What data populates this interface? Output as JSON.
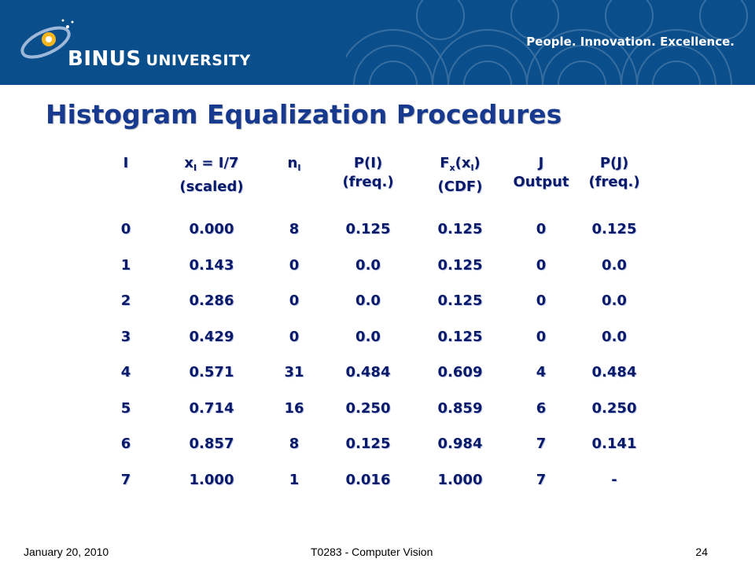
{
  "header": {
    "brand_main": "BINUS",
    "brand_sub": "UNIVERSITY",
    "tagline": "People. Innovation. Excellence."
  },
  "title": "Histogram Equalization Procedures",
  "table": {
    "headers": [
      [
        "I",
        ""
      ],
      [
        "x = I/7",
        "(scaled)"
      ],
      [
        "n",
        ""
      ],
      [
        "P(I)",
        "(freq.)"
      ],
      [
        "F(x)",
        "(CDF)"
      ],
      [
        "J",
        "Output"
      ],
      [
        "P(J)",
        "(freq.)"
      ]
    ],
    "header_subscripts": {
      "x": "I",
      "n": "I",
      "F": "x",
      "x_in_F": "I"
    },
    "rows": [
      [
        "0",
        "0.000",
        "8",
        "0.125",
        "0.125",
        "0",
        "0.125"
      ],
      [
        "1",
        "0.143",
        "0",
        "0.0",
        "0.125",
        "0",
        "0.0"
      ],
      [
        "2",
        "0.286",
        "0",
        "0.0",
        "0.125",
        "0",
        "0.0"
      ],
      [
        "3",
        "0.429",
        "0",
        "0.0",
        "0.125",
        "0",
        "0.0"
      ],
      [
        "4",
        "0.571",
        "31",
        "0.484",
        "0.609",
        "4",
        "0.484"
      ],
      [
        "5",
        "0.714",
        "16",
        "0.250",
        "0.859",
        "6",
        "0.250"
      ],
      [
        "6",
        "0.857",
        "8",
        "0.125",
        "0.984",
        "7",
        "0.141"
      ],
      [
        "7",
        "1.000",
        "1",
        "0.016",
        "1.000",
        "7",
        "-"
      ]
    ]
  },
  "footer": {
    "date": "January 20, 2010",
    "course": "T0283 - Computer Vision",
    "page": "24"
  },
  "colors": {
    "header_bg": "#0a4e8c",
    "title": "#173a8f",
    "table_text": "#0a1a6a"
  }
}
